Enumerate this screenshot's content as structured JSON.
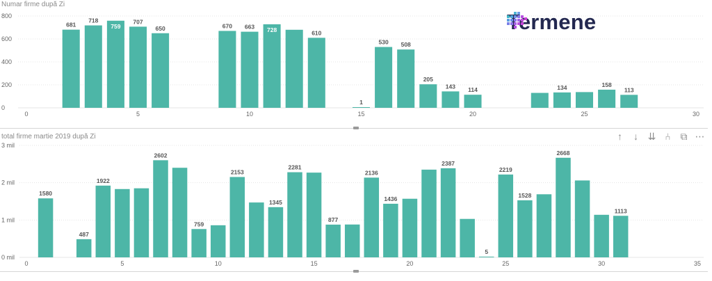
{
  "branding": {
    "logo_text": "Termene"
  },
  "toolbar": {
    "buttons": [
      {
        "name": "drill-up-icon",
        "glyph": "↑"
      },
      {
        "name": "drill-down-icon",
        "glyph": "↓"
      },
      {
        "name": "expand-all-icon",
        "glyph": "⇊"
      },
      {
        "name": "expand-hierarchy-icon",
        "glyph": "⑃"
      },
      {
        "name": "focus-mode-icon",
        "glyph": "⧉"
      },
      {
        "name": "more-options-icon",
        "glyph": "⋯"
      }
    ]
  },
  "colors": {
    "bar": "#4db6a7",
    "axis_text": "#666666",
    "grid": "#e4e4e4",
    "label": "#555555"
  },
  "chart_data": [
    {
      "type": "bar",
      "title": "Numar firme după Zi",
      "xlabel": "",
      "ylabel": "",
      "xlim": [
        0,
        30
      ],
      "ylim": [
        0,
        800
      ],
      "x_ticks": [
        0,
        5,
        10,
        15,
        20,
        25,
        30
      ],
      "y_ticks": [
        {
          "v": 0,
          "label": "0"
        },
        {
          "v": 200,
          "label": "200"
        },
        {
          "v": 400,
          "label": "400"
        },
        {
          "v": 600,
          "label": "600"
        },
        {
          "v": 800,
          "label": "800"
        }
      ],
      "grid": true,
      "points": [
        {
          "x": 2,
          "y": 681,
          "label": "681"
        },
        {
          "x": 3,
          "y": 718,
          "label": "718"
        },
        {
          "x": 4,
          "y": 759,
          "label": "759"
        },
        {
          "x": 5,
          "y": 707,
          "label": "707"
        },
        {
          "x": 6,
          "y": 650,
          "label": "650"
        },
        {
          "x": 9,
          "y": 670,
          "label": "670"
        },
        {
          "x": 10,
          "y": 663,
          "label": "663"
        },
        {
          "x": 11,
          "y": 728,
          "label": "728"
        },
        {
          "x": 12,
          "y": 680,
          "label": ""
        },
        {
          "x": 13,
          "y": 610,
          "label": "610"
        },
        {
          "x": 15,
          "y": 1,
          "label": "1"
        },
        {
          "x": 16,
          "y": 530,
          "label": "530"
        },
        {
          "x": 17,
          "y": 508,
          "label": "508"
        },
        {
          "x": 18,
          "y": 205,
          "label": "205"
        },
        {
          "x": 19,
          "y": 143,
          "label": "143"
        },
        {
          "x": 20,
          "y": 114,
          "label": "114"
        },
        {
          "x": 23,
          "y": 130,
          "label": ""
        },
        {
          "x": 24,
          "y": 134,
          "label": "134"
        },
        {
          "x": 25,
          "y": 137,
          "label": ""
        },
        {
          "x": 26,
          "y": 158,
          "label": "158"
        },
        {
          "x": 27,
          "y": 113,
          "label": "113"
        }
      ]
    },
    {
      "type": "bar",
      "title": "total firme martie 2019 după Zi",
      "xlabel": "",
      "ylabel": "",
      "xlim": [
        0,
        35
      ],
      "ylim": [
        0,
        3
      ],
      "x_ticks": [
        0,
        5,
        10,
        15,
        20,
        25,
        30,
        35
      ],
      "y_ticks": [
        {
          "v": 0,
          "label": "0 mil"
        },
        {
          "v": 1,
          "label": "1 mil"
        },
        {
          "v": 2,
          "label": "2 mil"
        },
        {
          "v": 3,
          "label": "3 mil"
        }
      ],
      "grid": true,
      "points": [
        {
          "x": 1,
          "y": 1.58,
          "label": "1580"
        },
        {
          "x": 3,
          "y": 0.487,
          "label": "487"
        },
        {
          "x": 4,
          "y": 1.922,
          "label": "1922"
        },
        {
          "x": 5,
          "y": 1.83,
          "label": ""
        },
        {
          "x": 6,
          "y": 1.85,
          "label": ""
        },
        {
          "x": 7,
          "y": 2.602,
          "label": "2602"
        },
        {
          "x": 8,
          "y": 2.4,
          "label": ""
        },
        {
          "x": 9,
          "y": 0.759,
          "label": "759"
        },
        {
          "x": 10,
          "y": 0.86,
          "label": ""
        },
        {
          "x": 11,
          "y": 2.153,
          "label": "2153"
        },
        {
          "x": 12,
          "y": 1.47,
          "label": ""
        },
        {
          "x": 13,
          "y": 1.345,
          "label": "1345"
        },
        {
          "x": 14,
          "y": 2.281,
          "label": "2281"
        },
        {
          "x": 15,
          "y": 2.27,
          "label": ""
        },
        {
          "x": 16,
          "y": 0.877,
          "label": "877"
        },
        {
          "x": 17,
          "y": 0.88,
          "label": ""
        },
        {
          "x": 18,
          "y": 2.136,
          "label": "2136"
        },
        {
          "x": 19,
          "y": 1.436,
          "label": "1436"
        },
        {
          "x": 20,
          "y": 1.57,
          "label": ""
        },
        {
          "x": 21,
          "y": 2.35,
          "label": ""
        },
        {
          "x": 22,
          "y": 2.387,
          "label": "2387"
        },
        {
          "x": 23,
          "y": 1.03,
          "label": ""
        },
        {
          "x": 24,
          "y": 0.005,
          "label": "5"
        },
        {
          "x": 25,
          "y": 2.219,
          "label": "2219"
        },
        {
          "x": 26,
          "y": 1.528,
          "label": "1528"
        },
        {
          "x": 27,
          "y": 1.69,
          "label": ""
        },
        {
          "x": 28,
          "y": 2.668,
          "label": "2668"
        },
        {
          "x": 29,
          "y": 2.06,
          "label": ""
        },
        {
          "x": 30,
          "y": 1.14,
          "label": ""
        },
        {
          "x": 31,
          "y": 1.113,
          "label": "1113"
        }
      ]
    }
  ]
}
